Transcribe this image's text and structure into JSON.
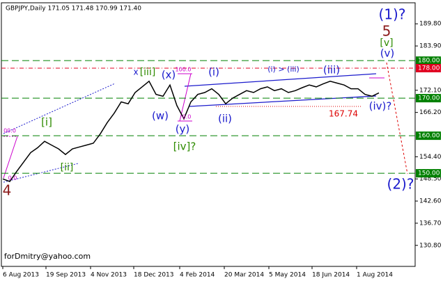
{
  "chart_data": {
    "type": "line",
    "title": "GBPJPY,Daily  171.05 171.48 170.99 171.40",
    "color": "#000000",
    "x": [
      0,
      5,
      10,
      15,
      20,
      25,
      30,
      35,
      40,
      45,
      50,
      55,
      60,
      65,
      70,
      75,
      80,
      85,
      90,
      95,
      100,
      105,
      110,
      115,
      120,
      125,
      130,
      135,
      140,
      145,
      150,
      155,
      160,
      165,
      170,
      175,
      180,
      185,
      190,
      195,
      200,
      205,
      210,
      215,
      220,
      225,
      230,
      235,
      240,
      245,
      250,
      255,
      260,
      265,
      270
    ],
    "values": [
      148.5,
      147.8,
      150.5,
      153,
      155.5,
      156.8,
      158.5,
      157.5,
      156.5,
      155,
      156.5,
      157,
      157.5,
      158,
      160.5,
      163.5,
      166,
      169,
      168.5,
      171.5,
      173,
      174.5,
      171,
      170.5,
      173.5,
      168,
      164.5,
      169,
      171,
      171.5,
      172.5,
      171,
      168.5,
      170,
      171,
      172,
      171.5,
      172.5,
      173,
      172,
      172.5,
      171.5,
      172,
      172.8,
      173.5,
      173,
      173.8,
      174.5,
      174,
      173.5,
      172.5,
      172.5,
      171,
      170.5,
      171.4
    ],
    "xlim": [
      -1,
      296
    ],
    "xticks": [
      {
        "value": 0,
        "label": "6 Aug 2013"
      },
      {
        "value": 31,
        "label": "19 Sep 2013"
      },
      {
        "value": 63,
        "label": "4 Nov 2013"
      },
      {
        "value": 94,
        "label": "18 Dec 2013"
      },
      {
        "value": 127,
        "label": "4 Feb 2014"
      },
      {
        "value": 159,
        "label": "20 Mar 2014"
      },
      {
        "value": 191,
        "label": "5 May 2014"
      },
      {
        "value": 222,
        "label": "18 Jun 2014"
      },
      {
        "value": 254,
        "label": "1 Aug 2014"
      }
    ],
    "ylim": [
      125.2,
      195.4
    ],
    "yticks": [
      {
        "value": 189.8,
        "label": "189.80"
      },
      {
        "value": 183.9,
        "label": "183.90"
      },
      {
        "value": 172.1,
        "label": "172.10"
      },
      {
        "value": 166.2,
        "label": "166.20"
      },
      {
        "value": 154.4,
        "label": "154.40"
      },
      {
        "value": 148.5,
        "label": "148.50"
      },
      {
        "value": 142.6,
        "label": "142.60"
      },
      {
        "value": 136.7,
        "label": "136.70"
      },
      {
        "value": 130.8,
        "label": "130.80"
      }
    ],
    "levels": [
      {
        "value": 180,
        "label": "180.00",
        "color": "#008000"
      },
      {
        "value": 178,
        "label": "178.00",
        "color": "#e00020"
      },
      {
        "value": 170,
        "label": "170.00",
        "color": "#008000"
      },
      {
        "value": 160,
        "label": "160.00",
        "color": "#008000"
      },
      {
        "value": 150,
        "label": "150.00",
        "color": "#008000"
      }
    ],
    "annotations": [
      {
        "text": "(1)?",
        "color": "#1a1acc"
      },
      {
        "text": "5",
        "color": "#8b1a1a"
      },
      {
        "text": "[v]",
        "color": "#2e8b00"
      },
      {
        "text": "(v)",
        "color": "#1a1acc"
      },
      {
        "text": "x",
        "color": "#1a1acc"
      },
      {
        "text": "[iii]",
        "color": "#2e8b00"
      },
      {
        "text": "(x)",
        "color": "#1a1acc"
      },
      {
        "text": "100.0",
        "color": "#cc00cc"
      },
      {
        "text": "(i)",
        "color": "#1a1acc"
      },
      {
        "text": "(i) > (iii)",
        "color": "#1a1acc"
      },
      {
        "text": "(iii)",
        "color": "#1a1acc"
      },
      {
        "text": "(w)",
        "color": "#1a1acc"
      },
      {
        "text": "(y)",
        "color": "#1a1acc"
      },
      {
        "text": "[iv]?",
        "color": "#2e8b00"
      },
      {
        "text": "(ii)",
        "color": "#1a1acc"
      },
      {
        "text": "167.74",
        "color": "#dd0000"
      },
      {
        "text": "(iv)?",
        "color": "#1a1acc"
      },
      {
        "text": "[i]",
        "color": "#2e8b00"
      },
      {
        "text": "[ii]",
        "color": "#2e8b00"
      },
      {
        "text": "00.0",
        "color": "#cc00cc"
      },
      {
        "text": "0.0",
        "color": "#cc00cc"
      },
      {
        "text": "0.0",
        "color": "#cc00cc"
      },
      {
        "text": "4",
        "color": "#8b1a1a"
      },
      {
        "text": "(2)?",
        "color": "#1a1acc"
      },
      {
        "text": "forDmitry@yahoo.com",
        "color": "#000000"
      }
    ]
  }
}
